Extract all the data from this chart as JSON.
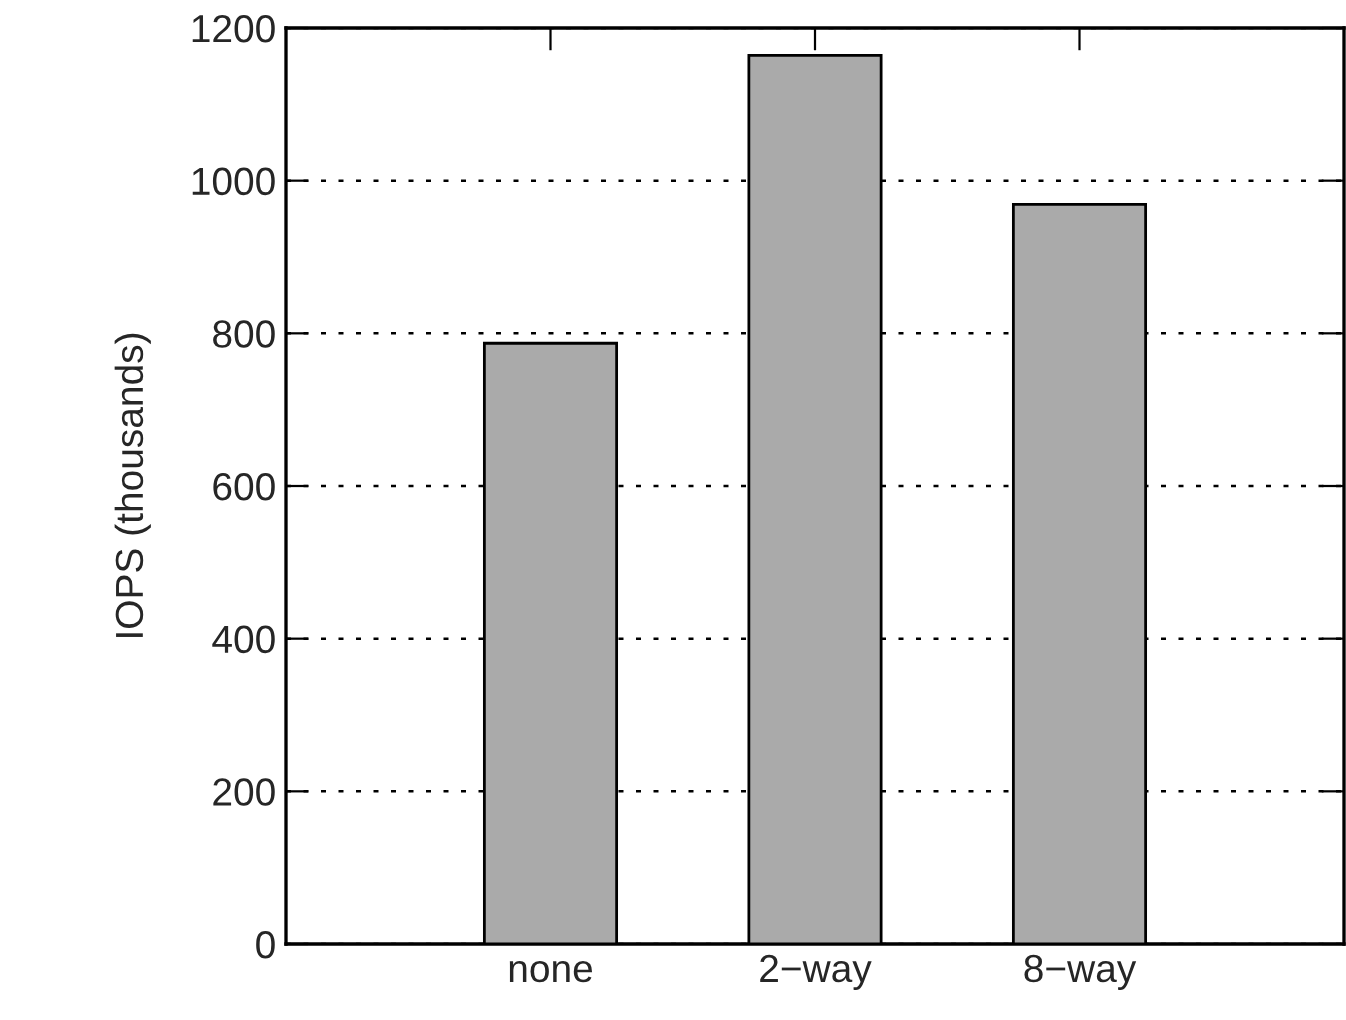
{
  "chart_data": {
    "type": "bar",
    "ylabel": "IOPS (thousands)",
    "categories": [
      "none",
      "2−way",
      "8−way"
    ],
    "values": [
      787,
      1164,
      969
    ],
    "color": "#aaaaaa",
    "ylim": [
      0,
      1200
    ],
    "yticks": [
      0,
      200,
      400,
      600,
      800,
      1000,
      1200
    ],
    "grid": "y"
  }
}
